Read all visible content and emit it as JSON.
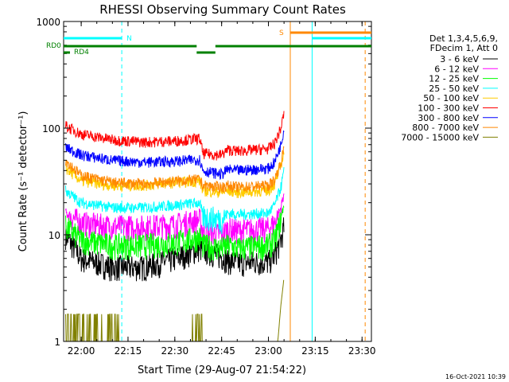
{
  "chart_data": {
    "type": "line",
    "title": "RHESSI Observing Summary Count Rates",
    "xlabel": "Start Time (29-Aug-07 21:54:22)",
    "ylabel": "Count Rate (s⁻¹ detector⁻¹)",
    "xlim": [
      "21:54:22",
      "23:33:00"
    ],
    "ylim": [
      1,
      1000
    ],
    "yscale": "log",
    "x_ticks": [
      "22:00",
      "22:15",
      "22:30",
      "22:45",
      "23:00",
      "23:15",
      "23:30"
    ],
    "y_ticks": [
      "1",
      "10",
      "100",
      "1000"
    ],
    "legend_title": [
      "Det 1,3,4,5,6,9,",
      "FDecim 1, Att 0"
    ],
    "legend_position": "right",
    "series": [
      {
        "name": "3 - 6 keV",
        "color": "#000000",
        "x": [
          "21:55",
          "22:00",
          "22:10",
          "22:20",
          "22:30",
          "22:38",
          "22:39",
          "22:45",
          "22:47",
          "22:50",
          "23:00",
          "23:02",
          "23:04",
          "23:05"
        ],
        "values": [
          10,
          6.0,
          5.0,
          5.0,
          6.0,
          7.5,
          7.3,
          6.3,
          5.8,
          5.5,
          5.6,
          6.5,
          9,
          12
        ]
      },
      {
        "name": "6 - 12 keV",
        "color": "#ff00ff",
        "x": [
          "21:55",
          "22:00",
          "22:10",
          "22:20",
          "22:30",
          "22:38",
          "22:39",
          "22:45",
          "22:47",
          "22:50",
          "23:00",
          "23:02",
          "23:04",
          "23:05"
        ],
        "values": [
          16,
          13,
          12,
          12,
          12.5,
          14,
          11,
          10,
          11.5,
          11,
          11.5,
          13,
          18,
          25
        ]
      },
      {
        "name": "12 - 25 keV",
        "color": "#00ff00",
        "x": [
          "21:55",
          "22:00",
          "22:10",
          "22:20",
          "22:30",
          "22:38",
          "22:39",
          "22:45",
          "22:47",
          "22:50",
          "23:00",
          "23:02",
          "23:04",
          "23:05"
        ],
        "values": [
          12,
          9,
          8,
          8,
          8.5,
          9.5,
          8,
          7.5,
          8,
          7.5,
          8,
          9,
          14,
          20
        ]
      },
      {
        "name": "25 - 50 keV",
        "color": "#00ffff",
        "x": [
          "21:55",
          "22:00",
          "22:10",
          "22:20",
          "22:30",
          "22:38",
          "22:39",
          "22:45",
          "22:47",
          "22:50",
          "23:00",
          "23:02",
          "23:04",
          "23:05"
        ],
        "values": [
          26,
          20,
          18,
          18,
          19,
          20,
          15,
          14,
          16,
          15.5,
          16,
          19,
          28,
          40
        ]
      },
      {
        "name": "50 - 100 keV",
        "color": "#ffcc00",
        "x": [
          "21:55",
          "22:00",
          "22:10",
          "22:20",
          "22:30",
          "22:38",
          "22:39",
          "22:45",
          "22:47",
          "22:50",
          "23:00",
          "23:02",
          "23:04",
          "23:05"
        ],
        "values": [
          42,
          32,
          29,
          29,
          31,
          32,
          26,
          25,
          26,
          25,
          26,
          30,
          45,
          60
        ]
      },
      {
        "name": "100 - 300 keV",
        "color": "#ff0000",
        "x": [
          "21:55",
          "22:00",
          "22:10",
          "22:20",
          "22:30",
          "22:38",
          "22:39",
          "22:45",
          "22:47",
          "22:50",
          "23:00",
          "23:02",
          "23:04",
          "23:05"
        ],
        "values": [
          105,
          88,
          78,
          74,
          76,
          80,
          58,
          56,
          63,
          61,
          64,
          72,
          100,
          140
        ]
      },
      {
        "name": "300 - 800 keV",
        "color": "#0000ff",
        "x": [
          "21:55",
          "22:00",
          "22:10",
          "22:20",
          "22:30",
          "22:38",
          "22:39",
          "22:45",
          "22:47",
          "22:50",
          "23:00",
          "23:02",
          "23:04",
          "23:05"
        ],
        "values": [
          66,
          56,
          50,
          48,
          49,
          51,
          40,
          37,
          41,
          40,
          42,
          48,
          70,
          100
        ]
      },
      {
        "name": "800 - 7000 keV",
        "color": "#ff8800",
        "x": [
          "21:55",
          "22:00",
          "22:10",
          "22:20",
          "22:30",
          "22:38",
          "22:39",
          "22:45",
          "22:47",
          "22:50",
          "23:00",
          "23:02",
          "23:04",
          "23:05"
        ],
        "values": [
          50,
          36,
          31,
          30,
          32,
          33,
          29,
          28,
          29,
          28,
          29,
          33,
          48,
          65
        ]
      },
      {
        "name": "7000 - 15000 keV",
        "color": "#808000",
        "x": [
          "21:55",
          "21:58",
          "22:09",
          "22:12",
          "22:35",
          "22:38",
          "22:39",
          "23:03",
          "23:04",
          "23:05"
        ],
        "values": [
          1.8,
          1.8,
          1.0,
          1.0,
          1.8,
          1.8,
          1.0,
          1.0,
          2.2,
          4.0
        ]
      }
    ],
    "flags": {
      "saa_markers": [
        {
          "label": "N",
          "color": "#00ffff",
          "x": "22:13"
        },
        {
          "label": "S",
          "color": "#ff8800",
          "x": "23:07"
        }
      ],
      "rd_labels": [
        {
          "label": "RD0",
          "color": "#008000"
        },
        {
          "label": "RD4",
          "color": "#008000"
        }
      ]
    },
    "vertical_lines": [
      {
        "x": "21:54:22",
        "color": "#00ffff"
      },
      {
        "x": "22:13",
        "color": "#00ffff",
        "dashed": true
      },
      {
        "x": "23:07",
        "color": "#ff8800"
      },
      {
        "x": "23:14",
        "color": "#00ffff"
      },
      {
        "x": "23:31",
        "color": "#ff8800",
        "dashed": true
      }
    ],
    "grid": false
  },
  "footer": {
    "timestamp": "16-Oct-2021 10:39"
  }
}
